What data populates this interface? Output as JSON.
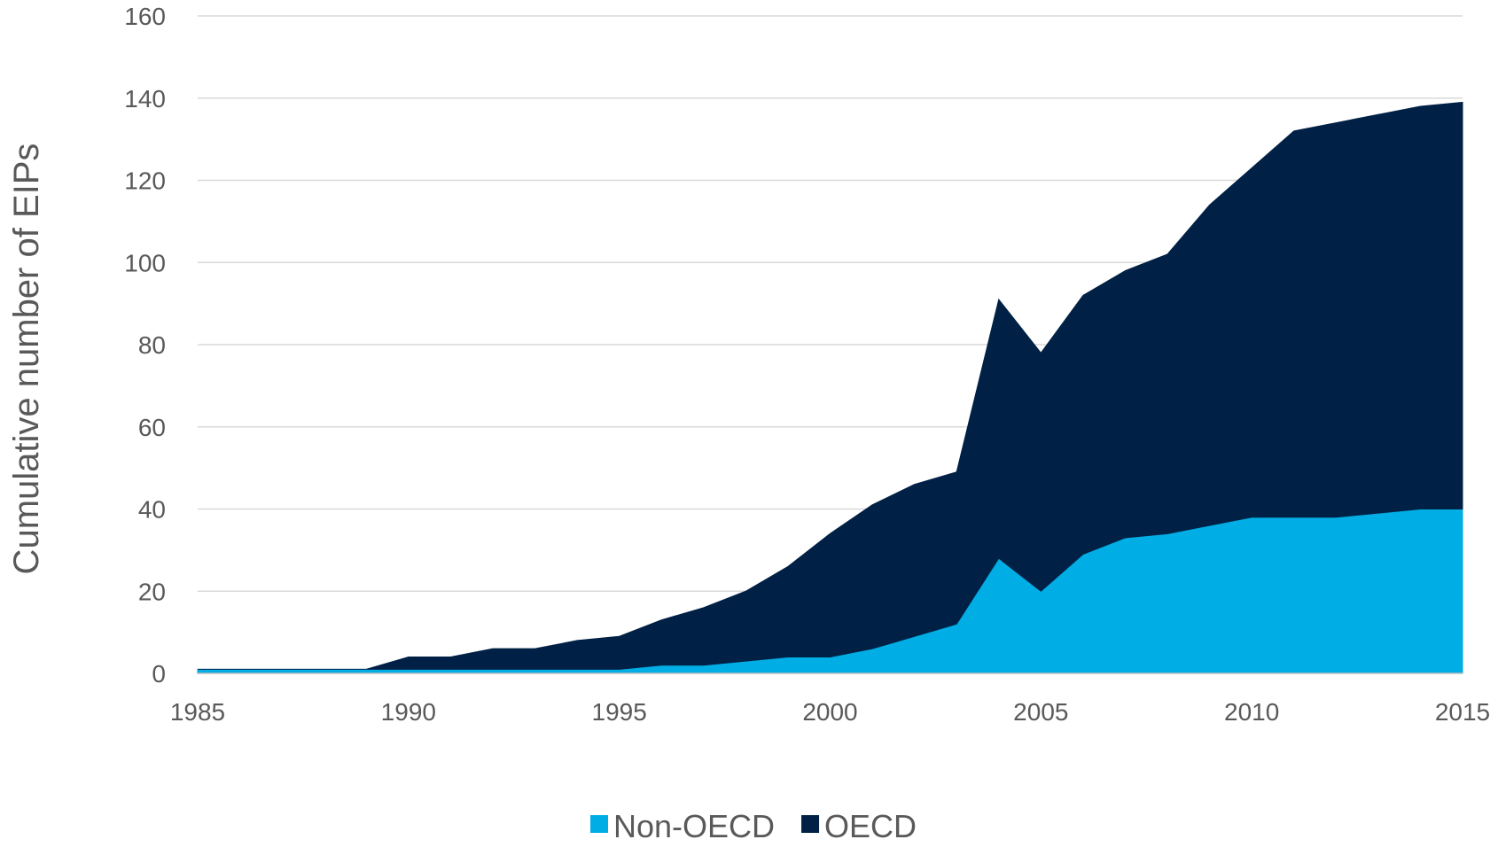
{
  "chart_data": {
    "type": "area",
    "stacked": true,
    "ylabel": "Cumulative number of EIPs",
    "xlabel": "",
    "ylim": [
      0,
      160
    ],
    "xlim": [
      1985,
      2015
    ],
    "yticks": [
      0,
      20,
      40,
      60,
      80,
      100,
      120,
      140,
      160
    ],
    "xticks": [
      1985,
      1990,
      1995,
      2000,
      2005,
      2010,
      2015
    ],
    "grid": true,
    "legend_position": "bottom",
    "x": [
      1985,
      1986,
      1987,
      1988,
      1989,
      1990,
      1991,
      1992,
      1993,
      1994,
      1995,
      1996,
      1997,
      1998,
      1999,
      2000,
      2001,
      2002,
      2003,
      2004,
      2005,
      2006,
      2007,
      2008,
      2009,
      2010,
      2011,
      2012,
      2013,
      2014,
      2015
    ],
    "series": [
      {
        "name": "Non-OECD",
        "color": "#00ade4",
        "values": [
          1,
          1,
          1,
          1,
          1,
          1,
          1,
          1,
          1,
          1,
          1,
          2,
          2,
          3,
          4,
          4,
          6,
          9,
          12,
          28,
          20,
          29,
          33,
          34,
          36,
          38,
          38,
          38,
          39,
          40,
          40
        ]
      },
      {
        "name": "OECD",
        "color": "#002145",
        "values": [
          0,
          0,
          0,
          0,
          0,
          3,
          3,
          5,
          5,
          7,
          8,
          11,
          14,
          17,
          22,
          30,
          35,
          37,
          37,
          63,
          58,
          63,
          65,
          68,
          78,
          85,
          94,
          96,
          97,
          98,
          99
        ]
      }
    ]
  }
}
